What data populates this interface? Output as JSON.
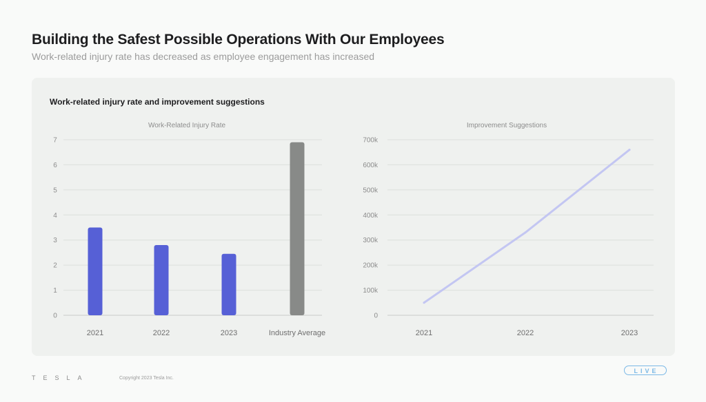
{
  "slide": {
    "title": "Building the Safest Possible Operations With Our Employees",
    "subtitle": "Work-related injury rate has decreased as employee engagement has increased"
  },
  "panel": {
    "title": "Work-related injury rate and improvement suggestions"
  },
  "chart_data": [
    {
      "type": "bar",
      "title": "Work-Related Injury Rate",
      "categories": [
        "2021",
        "2022",
        "2023",
        "Industry Average"
      ],
      "values": [
        3.5,
        2.8,
        2.45,
        6.9
      ],
      "colors": [
        "#5660d6",
        "#5660d6",
        "#5660d6",
        "#888a88"
      ],
      "ylim": [
        0,
        7
      ],
      "yticks": [
        "0",
        "1",
        "2",
        "3",
        "4",
        "5",
        "6",
        "7"
      ],
      "grid": true
    },
    {
      "type": "line",
      "title": "Improvement Suggestions",
      "categories": [
        "2021",
        "2022",
        "2023"
      ],
      "values": [
        50000,
        330000,
        660000
      ],
      "color": "#c3c6f2",
      "ylim": [
        0,
        700000
      ],
      "yticks": [
        "0",
        "100k",
        "200k",
        "300k",
        "400k",
        "500k",
        "600k",
        "700k"
      ],
      "grid": true
    }
  ],
  "footer": {
    "brand": "TESLA",
    "copyright": "Copyright 2023 Tesla Inc.",
    "badge": "LIVE"
  }
}
